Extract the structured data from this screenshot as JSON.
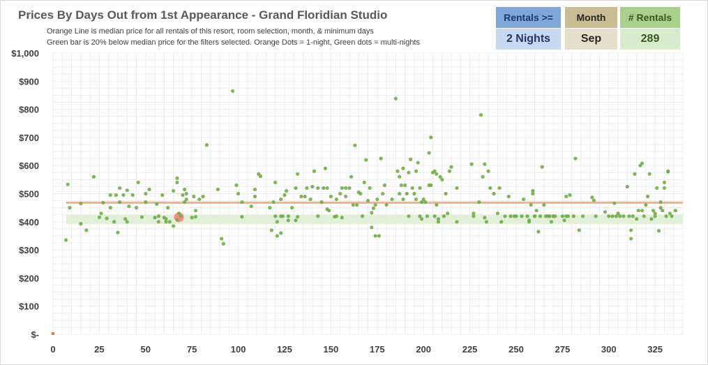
{
  "title": "Prices By Days Out from 1st Appearance - Grand Floridian Studio",
  "subtitle_line1": "Orange Line is median price for all rentals of this resort, room selection, month, & minimum days",
  "subtitle_line2": "Green bar is 20% below median price for the filters selected. Orange Dots = 1-night, Green dots = multi-nights",
  "filters": {
    "rentals": {
      "label": "Rentals >=",
      "value": "2 Nights"
    },
    "month": {
      "label": "Month",
      "value": "Sep"
    },
    "count": {
      "label": "# Rentals",
      "value": "289"
    }
  },
  "colors": {
    "median_line": "#f4b183",
    "green_band": "#e2efd9",
    "green_dot": "#70ad47",
    "orange_dot": "#ed7d31",
    "highlight": "#ff7c80",
    "grid": "#ececec"
  },
  "chart_data": {
    "type": "scatter",
    "title": "Prices By Days Out from 1st Appearance - Grand Floridian Studio",
    "xlabel": "",
    "ylabel": "",
    "xlim": [
      0,
      340
    ],
    "ylim": [
      0,
      1000
    ],
    "x_ticks": [
      0,
      25,
      50,
      75,
      100,
      125,
      150,
      175,
      200,
      225,
      250,
      275,
      300,
      325
    ],
    "y_ticks": [
      0,
      100,
      200,
      300,
      400,
      500,
      600,
      700,
      800,
      900,
      1000
    ],
    "y_tick_labels": [
      "$-",
      "$100",
      "$200",
      "$300",
      "$400",
      "$500",
      "$600",
      "$700",
      "$800",
      "$900",
      "$1,000"
    ],
    "median_price": 468,
    "green_band": [
      392,
      425
    ],
    "band_x_range": [
      7,
      340
    ],
    "grid": true,
    "highlight_point": [
      68,
      416
    ],
    "series": [
      {
        "name": "Orange Dots = 1-night",
        "points": [
          [
            0,
            0
          ]
        ]
      },
      {
        "name": "Green dots = multi-nights",
        "points": [
          [
            7,
            335
          ],
          [
            8,
            533
          ],
          [
            9,
            450
          ],
          [
            15,
            393
          ],
          [
            15,
            465
          ],
          [
            18,
            370
          ],
          [
            22,
            560
          ],
          [
            25,
            416
          ],
          [
            26,
            430
          ],
          [
            27,
            468
          ],
          [
            29,
            412
          ],
          [
            31,
            450
          ],
          [
            31,
            495
          ],
          [
            33,
            400
          ],
          [
            34,
            495
          ],
          [
            35,
            362
          ],
          [
            36,
            520
          ],
          [
            36,
            470
          ],
          [
            38,
            495
          ],
          [
            39,
            410
          ],
          [
            40,
            400
          ],
          [
            40,
            512
          ],
          [
            41,
            455
          ],
          [
            43,
            495
          ],
          [
            45,
            450
          ],
          [
            46,
            540
          ],
          [
            48,
            417
          ],
          [
            50,
            500
          ],
          [
            50,
            470
          ],
          [
            52,
            515
          ],
          [
            55,
            415
          ],
          [
            56,
            463
          ],
          [
            57,
            400
          ],
          [
            57,
            420
          ],
          [
            59,
            495
          ],
          [
            60,
            415
          ],
          [
            61,
            410
          ],
          [
            61,
            400
          ],
          [
            62,
            450
          ],
          [
            63,
            400
          ],
          [
            65,
            385
          ],
          [
            65,
            510
          ],
          [
            67,
            407
          ],
          [
            67,
            555
          ],
          [
            67,
            540
          ],
          [
            68,
            430
          ],
          [
            69,
            420
          ],
          [
            70,
            495
          ],
          [
            71,
            515
          ],
          [
            71,
            470
          ],
          [
            72,
            500
          ],
          [
            72,
            480
          ],
          [
            75,
            415
          ],
          [
            76,
            490
          ],
          [
            77,
            418
          ],
          [
            77,
            440
          ],
          [
            79,
            480
          ],
          [
            81,
            490
          ],
          [
            83,
            673
          ],
          [
            89,
            515
          ],
          [
            91,
            340
          ],
          [
            92,
            322
          ],
          [
            97,
            865
          ],
          [
            99,
            530
          ],
          [
            100,
            500
          ],
          [
            102,
            418
          ],
          [
            102,
            470
          ],
          [
            107,
            455
          ],
          [
            109,
            490
          ],
          [
            109,
            515
          ],
          [
            111,
            570
          ],
          [
            112,
            562
          ],
          [
            117,
            450
          ],
          [
            118,
            370
          ],
          [
            119,
            470
          ],
          [
            120,
            420
          ],
          [
            120,
            540
          ],
          [
            121,
            400
          ],
          [
            121,
            350
          ],
          [
            123,
            360
          ],
          [
            123,
            420
          ],
          [
            123,
            480
          ],
          [
            124,
            420
          ],
          [
            125,
            495
          ],
          [
            126,
            510
          ],
          [
            127,
            420
          ],
          [
            127,
            405
          ],
          [
            129,
            450
          ],
          [
            131,
            405
          ],
          [
            131,
            520
          ],
          [
            132,
            418
          ],
          [
            132,
            570
          ],
          [
            134,
            490
          ],
          [
            136,
            490
          ],
          [
            137,
            520
          ],
          [
            139,
            480
          ],
          [
            140,
            525
          ],
          [
            141,
            580
          ],
          [
            143,
            420
          ],
          [
            143,
            520
          ],
          [
            145,
            470
          ],
          [
            146,
            520
          ],
          [
            147,
            590
          ],
          [
            148,
            445
          ],
          [
            148,
            520
          ],
          [
            149,
            440
          ],
          [
            150,
            490
          ],
          [
            152,
            418
          ],
          [
            153,
            420
          ],
          [
            153,
            480
          ],
          [
            155,
            500
          ],
          [
            156,
            520
          ],
          [
            156,
            415
          ],
          [
            158,
            490
          ],
          [
            158,
            520
          ],
          [
            160,
            520
          ],
          [
            161,
            560
          ],
          [
            162,
            460
          ],
          [
            163,
            672
          ],
          [
            164,
            460
          ],
          [
            165,
            505
          ],
          [
            166,
            500
          ],
          [
            167,
            420
          ],
          [
            168,
            540
          ],
          [
            169,
            620
          ],
          [
            170,
            475
          ],
          [
            171,
            520
          ],
          [
            172,
            380
          ],
          [
            172,
            432
          ],
          [
            173,
            448
          ],
          [
            174,
            350
          ],
          [
            174,
            460
          ],
          [
            175,
            480
          ],
          [
            176,
            350
          ],
          [
            177,
            625
          ],
          [
            178,
            500
          ],
          [
            179,
            530
          ],
          [
            180,
            460
          ],
          [
            183,
            480
          ],
          [
            185,
            838
          ],
          [
            186,
            580
          ],
          [
            187,
            500
          ],
          [
            187,
            560
          ],
          [
            188,
            530
          ],
          [
            189,
            590
          ],
          [
            189,
            480
          ],
          [
            190,
            530
          ],
          [
            191,
            500
          ],
          [
            192,
            420
          ],
          [
            192,
            575
          ],
          [
            193,
            622
          ],
          [
            194,
            520
          ],
          [
            195,
            500
          ],
          [
            196,
            480
          ],
          [
            196,
            580
          ],
          [
            197,
            610
          ],
          [
            198,
            520
          ],
          [
            198,
            420
          ],
          [
            199,
            470
          ],
          [
            199,
            410
          ],
          [
            200,
            480
          ],
          [
            201,
            470
          ],
          [
            202,
            420
          ],
          [
            203,
            645
          ],
          [
            203,
            530
          ],
          [
            204,
            530
          ],
          [
            204,
            700
          ],
          [
            205,
            575
          ],
          [
            206,
            580
          ],
          [
            206,
            420
          ],
          [
            207,
            460
          ],
          [
            207,
            570
          ],
          [
            208,
            410
          ],
          [
            208,
            400
          ],
          [
            209,
            560
          ],
          [
            210,
            550
          ],
          [
            211,
            420
          ],
          [
            212,
            500
          ],
          [
            213,
            430
          ],
          [
            214,
            580
          ],
          [
            215,
            595
          ],
          [
            218,
            520
          ],
          [
            218,
            400
          ],
          [
            226,
            605
          ],
          [
            227,
            420
          ],
          [
            227,
            430
          ],
          [
            230,
            470
          ],
          [
            231,
            780
          ],
          [
            232,
            560
          ],
          [
            233,
            605
          ],
          [
            233,
            415
          ],
          [
            234,
            400
          ],
          [
            235,
            580
          ],
          [
            236,
            520
          ],
          [
            238,
            500
          ],
          [
            240,
            430
          ],
          [
            241,
            520
          ],
          [
            242,
            400
          ],
          [
            244,
            420
          ],
          [
            246,
            490
          ],
          [
            247,
            420
          ],
          [
            249,
            420
          ],
          [
            250,
            420
          ],
          [
            253,
            420
          ],
          [
            254,
            480
          ],
          [
            256,
            420
          ],
          [
            257,
            400
          ],
          [
            257,
            405
          ],
          [
            258,
            460
          ],
          [
            259,
            510
          ],
          [
            259,
            500
          ],
          [
            260,
            420
          ],
          [
            260,
            420
          ],
          [
            261,
            440
          ],
          [
            262,
            365
          ],
          [
            263,
            420
          ],
          [
            264,
            595
          ],
          [
            265,
            460
          ],
          [
            266,
            420
          ],
          [
            267,
            420
          ],
          [
            268,
            420
          ],
          [
            269,
            400
          ],
          [
            270,
            420
          ],
          [
            271,
            420
          ],
          [
            275,
            420
          ],
          [
            276,
            405
          ],
          [
            277,
            420
          ],
          [
            277,
            490
          ],
          [
            278,
            420
          ],
          [
            279,
            495
          ],
          [
            281,
            420
          ],
          [
            282,
            625
          ],
          [
            284,
            370
          ],
          [
            286,
            420
          ],
          [
            291,
            487
          ],
          [
            292,
            476
          ],
          [
            293,
            420
          ],
          [
            298,
            435
          ],
          [
            300,
            420
          ],
          [
            302,
            420
          ],
          [
            303,
            466
          ],
          [
            304,
            420
          ],
          [
            305,
            430
          ],
          [
            306,
            420
          ],
          [
            308,
            420
          ],
          [
            310,
            525
          ],
          [
            311,
            420
          ],
          [
            312,
            370
          ],
          [
            312,
            340
          ],
          [
            313,
            420
          ],
          [
            314,
            570
          ],
          [
            315,
            410
          ],
          [
            316,
            440
          ],
          [
            317,
            600
          ],
          [
            318,
            608
          ],
          [
            318,
            440
          ],
          [
            319,
            420
          ],
          [
            320,
            460
          ],
          [
            321,
            490
          ],
          [
            322,
            570
          ],
          [
            323,
            410
          ],
          [
            324,
            440
          ],
          [
            325,
            430
          ],
          [
            325,
            420
          ],
          [
            326,
            520
          ],
          [
            327,
            368
          ],
          [
            328,
            450
          ],
          [
            328,
            470
          ],
          [
            329,
            440
          ],
          [
            330,
            540
          ],
          [
            330,
            520
          ],
          [
            331,
            420
          ],
          [
            332,
            580
          ],
          [
            332,
            578
          ],
          [
            333,
            430
          ],
          [
            334,
            420
          ],
          [
            336,
            440
          ]
        ]
      }
    ]
  }
}
